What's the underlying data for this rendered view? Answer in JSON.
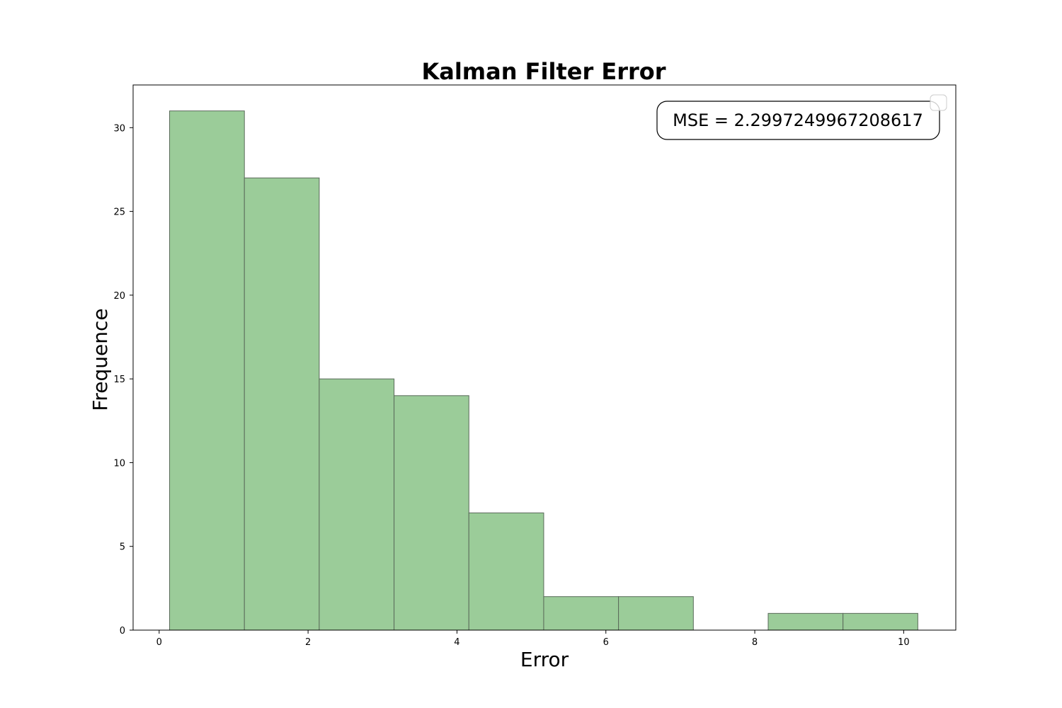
{
  "chart_data": {
    "type": "bar",
    "title": "Kalman Filter Error",
    "xlabel": "Error",
    "ylabel": "Frequence",
    "annotation": "MSE = 2.2997249967208617",
    "bin_edges": [
      0.14,
      1.145,
      2.15,
      3.155,
      4.16,
      5.165,
      6.17,
      7.175,
      8.18,
      9.185,
      10.19
    ],
    "counts": [
      31,
      27,
      15,
      14,
      7,
      2,
      2,
      0,
      1,
      1
    ],
    "xlim": [
      -0.35,
      10.7
    ],
    "ylim": [
      0,
      32.55
    ],
    "xticks": [
      0,
      2,
      4,
      6,
      8,
      10
    ],
    "yticks": [
      0,
      5,
      10,
      15,
      20,
      25,
      30
    ],
    "xtick_labels": [
      "0",
      "2",
      "4",
      "6",
      "8",
      "10"
    ],
    "ytick_labels": [
      "0",
      "5",
      "10",
      "15",
      "20",
      "25",
      "30"
    ],
    "bar_color": "#9bcc99",
    "edge_color": "#5a6a5a",
    "grid": false,
    "legend": "top-right (empty)",
    "annotation_placement": "top-right"
  }
}
